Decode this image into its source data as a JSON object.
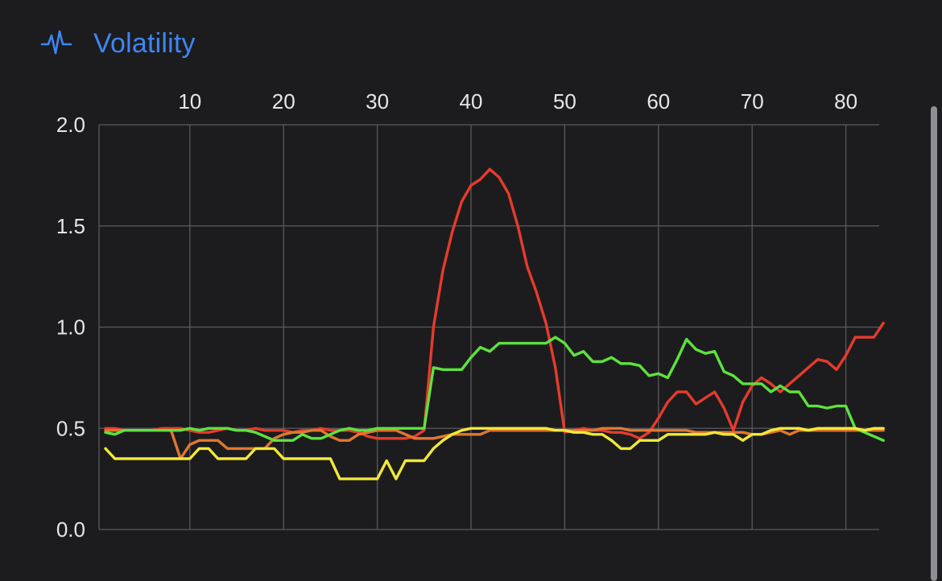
{
  "header": {
    "title": "Volatility",
    "icon": "waveform-pulse-icon",
    "accent": "#3e86f2"
  },
  "chart_data": {
    "type": "line",
    "title": "Volatility",
    "xlabel": "",
    "ylabel": "",
    "xlim": [
      1,
      84
    ],
    "ylim": [
      0,
      2
    ],
    "x_ticks": [
      10,
      20,
      30,
      40,
      50,
      60,
      70,
      80
    ],
    "y_ticks": [
      "0.0",
      "0.5",
      "1.0",
      "1.5",
      "2.0"
    ],
    "x_axis_position": "top",
    "grid": true,
    "x": [
      1,
      2,
      3,
      4,
      5,
      6,
      7,
      8,
      9,
      10,
      11,
      12,
      13,
      14,
      15,
      16,
      17,
      18,
      19,
      20,
      21,
      22,
      23,
      24,
      25,
      26,
      27,
      28,
      29,
      30,
      31,
      32,
      33,
      34,
      35,
      36,
      37,
      38,
      39,
      40,
      41,
      42,
      43,
      44,
      45,
      46,
      47,
      48,
      49,
      50,
      51,
      52,
      53,
      54,
      55,
      56,
      57,
      58,
      59,
      60,
      61,
      62,
      63,
      64,
      65,
      66,
      67,
      68,
      69,
      70,
      71,
      72,
      73,
      74,
      75,
      76,
      77,
      78,
      79,
      80,
      81,
      82,
      83,
      84
    ],
    "series": [
      {
        "color": "#e53b2c",
        "values": [
          0.5,
          0.5,
          0.49,
          0.49,
          0.49,
          0.49,
          0.5,
          0.5,
          0.5,
          0.49,
          0.48,
          0.48,
          0.49,
          0.5,
          0.49,
          0.49,
          0.5,
          0.49,
          0.49,
          0.49,
          0.48,
          0.49,
          0.49,
          0.5,
          0.49,
          0.49,
          0.49,
          0.48,
          0.46,
          0.45,
          0.45,
          0.45,
          0.45,
          0.46,
          0.49,
          1.0,
          1.28,
          1.47,
          1.62,
          1.7,
          1.73,
          1.78,
          1.74,
          1.66,
          1.5,
          1.3,
          1.17,
          1.02,
          0.8,
          0.48,
          0.49,
          0.5,
          0.49,
          0.49,
          0.48,
          0.48,
          0.47,
          0.45,
          0.48,
          0.55,
          0.63,
          0.68,
          0.68,
          0.62,
          0.65,
          0.68,
          0.6,
          0.49,
          0.63,
          0.71,
          0.75,
          0.72,
          0.68,
          0.72,
          0.76,
          0.8,
          0.84,
          0.83,
          0.79,
          0.86,
          0.95,
          0.95,
          0.95,
          1.02
        ]
      },
      {
        "color": "#e0772f",
        "values": [
          0.49,
          0.49,
          0.49,
          0.49,
          0.49,
          0.49,
          0.49,
          0.49,
          0.35,
          0.42,
          0.44,
          0.44,
          0.44,
          0.4,
          0.4,
          0.4,
          0.4,
          0.4,
          0.45,
          0.47,
          0.48,
          0.48,
          0.49,
          0.49,
          0.46,
          0.44,
          0.44,
          0.47,
          0.48,
          0.49,
          0.49,
          0.49,
          0.47,
          0.45,
          0.45,
          0.45,
          0.46,
          0.47,
          0.47,
          0.47,
          0.47,
          0.49,
          0.49,
          0.49,
          0.49,
          0.49,
          0.49,
          0.49,
          0.49,
          0.49,
          0.49,
          0.49,
          0.49,
          0.5,
          0.5,
          0.5,
          0.49,
          0.49,
          0.49,
          0.49,
          0.49,
          0.49,
          0.49,
          0.48,
          0.48,
          0.48,
          0.48,
          0.48,
          0.48,
          0.47,
          0.47,
          0.48,
          0.49,
          0.47,
          0.49,
          0.49,
          0.49,
          0.49,
          0.49,
          0.49,
          0.49,
          0.49,
          0.49,
          0.49
        ]
      },
      {
        "color": "#5ee23f",
        "values": [
          0.48,
          0.47,
          0.49,
          0.49,
          0.49,
          0.49,
          0.49,
          0.49,
          0.49,
          0.5,
          0.49,
          0.5,
          0.5,
          0.5,
          0.49,
          0.49,
          0.48,
          0.46,
          0.44,
          0.44,
          0.44,
          0.47,
          0.45,
          0.45,
          0.47,
          0.49,
          0.5,
          0.49,
          0.49,
          0.5,
          0.5,
          0.5,
          0.5,
          0.5,
          0.5,
          0.8,
          0.79,
          0.79,
          0.79,
          0.85,
          0.9,
          0.88,
          0.92,
          0.92,
          0.92,
          0.92,
          0.92,
          0.92,
          0.95,
          0.92,
          0.86,
          0.88,
          0.83,
          0.83,
          0.85,
          0.82,
          0.82,
          0.81,
          0.76,
          0.77,
          0.75,
          0.84,
          0.94,
          0.89,
          0.87,
          0.88,
          0.78,
          0.76,
          0.72,
          0.72,
          0.72,
          0.68,
          0.71,
          0.68,
          0.68,
          0.61,
          0.61,
          0.6,
          0.61,
          0.61,
          0.5,
          0.48,
          0.46,
          0.44
        ]
      },
      {
        "color": "#f1e839",
        "values": [
          0.4,
          0.35,
          0.35,
          0.35,
          0.35,
          0.35,
          0.35,
          0.35,
          0.35,
          0.35,
          0.4,
          0.4,
          0.35,
          0.35,
          0.35,
          0.35,
          0.4,
          0.4,
          0.4,
          0.35,
          0.35,
          0.35,
          0.35,
          0.35,
          0.35,
          0.25,
          0.25,
          0.25,
          0.25,
          0.25,
          0.34,
          0.25,
          0.34,
          0.34,
          0.34,
          0.4,
          0.44,
          0.47,
          0.49,
          0.5,
          0.5,
          0.5,
          0.5,
          0.5,
          0.5,
          0.5,
          0.5,
          0.5,
          0.49,
          0.49,
          0.48,
          0.48,
          0.47,
          0.47,
          0.44,
          0.4,
          0.4,
          0.44,
          0.44,
          0.44,
          0.47,
          0.47,
          0.47,
          0.47,
          0.47,
          0.48,
          0.47,
          0.47,
          0.44,
          0.47,
          0.47,
          0.49,
          0.5,
          0.5,
          0.5,
          0.49,
          0.5,
          0.5,
          0.5,
          0.5,
          0.5,
          0.49,
          0.5,
          0.5
        ]
      }
    ]
  }
}
